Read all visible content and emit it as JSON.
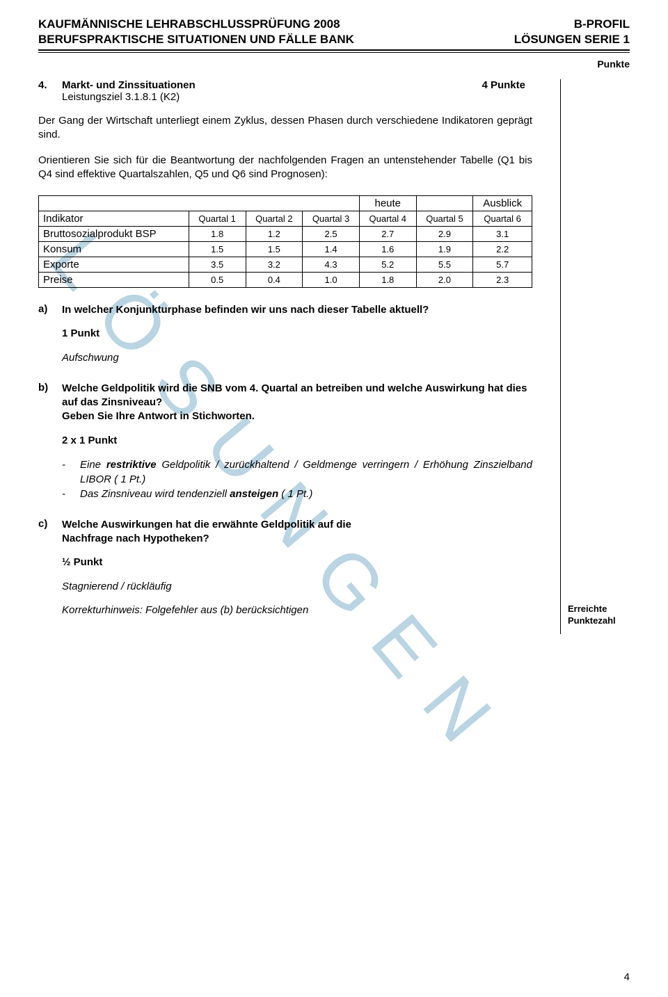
{
  "header": {
    "left": "KAUFMÄNNISCHE LEHRABSCHLUSSPRÜFUNG 2008",
    "right": "B-PROFIL"
  },
  "subheader": {
    "left": "BERUFSPRAKTISCHE SITUATIONEN UND FÄLLE BANK",
    "right": "LÖSUNGEN SERIE 1"
  },
  "watermark": "LÖSUNGEN",
  "punkte_label": "Punkte",
  "section": {
    "num": "4.",
    "title": "Markt- und Zinssituationen",
    "points": "4 Punkte",
    "leistung": "Leistungsziel 3.1.8.1 (K2)"
  },
  "intro1": "Der Gang der Wirtschaft unterliegt einem Zyklus, dessen Phasen durch verschiedene Indikatoren geprägt sind.",
  "intro2": "Orientieren Sie sich für die Beantwortung der nachfolgenden Fragen an untenstehender Tabelle (Q1 bis Q4 sind effektive Quartalszahlen, Q5 und Q6 sind Prognosen):",
  "table": {
    "top_labels": {
      "heute": "heute",
      "ausblick": "Ausblick"
    },
    "head": [
      "Indikator",
      "Quartal 1",
      "Quartal 2",
      "Quartal 3",
      "Quartal 4",
      "Quartal 5",
      "Quartal 6"
    ],
    "rows": [
      {
        "label": "Bruttosozialprodukt BSP",
        "vals": [
          "1.8",
          "1.2",
          "2.5",
          "2.7",
          "2.9",
          "3.1"
        ]
      },
      {
        "label": "Konsum",
        "vals": [
          "1.5",
          "1.5",
          "1.4",
          "1.6",
          "1.9",
          "2.2"
        ]
      },
      {
        "label": "Exporte",
        "vals": [
          "3.5",
          "3.2",
          "4.3",
          "5.2",
          "5.5",
          "5.7"
        ]
      },
      {
        "label": "Preise",
        "vals": [
          "0.5",
          "0.4",
          "1.0",
          "1.8",
          "2.0",
          "2.3"
        ]
      }
    ]
  },
  "qa": {
    "a": {
      "letter": "a)",
      "q": "In welcher Konjunkturphase befinden wir uns nach dieser Tabelle aktuell?",
      "points": "1 Punkt",
      "answer": "Aufschwung"
    },
    "b": {
      "letter": "b)",
      "q1": "Welche Geldpolitik wird die SNB vom 4. Quartal an betreiben und welche Auswirkung hat dies auf das Zinsniveau?",
      "q2": "Geben Sie Ihre Antwort in Stichworten.",
      "points": "2 x 1 Punkt",
      "b1_pre": "Eine ",
      "b1_bold": "restriktive",
      "b1_post": " Geldpolitik / zurückhaltend / Geldmenge verringern / Erhöhung Zinszielband LIBOR ( 1 Pt.)",
      "b2_pre": "Das Zinsniveau wird tendenziell ",
      "b2_bold": "ansteigen",
      "b2_post": " ( 1 Pt.)"
    },
    "c": {
      "letter": "c)",
      "q1": "Welche Auswirkungen hat die erwähnte Geldpolitik auf die",
      "q2": "Nachfrage nach Hypotheken?",
      "points": "½ Punkt",
      "answer": "Stagnierend / rückläufig",
      "hint": "Korrekturhinweis: Folgefehler aus (b) berücksichtigen"
    }
  },
  "footer": {
    "erreichte1": "Erreichte",
    "erreichte2": "Punktezahl",
    "page": "4"
  }
}
